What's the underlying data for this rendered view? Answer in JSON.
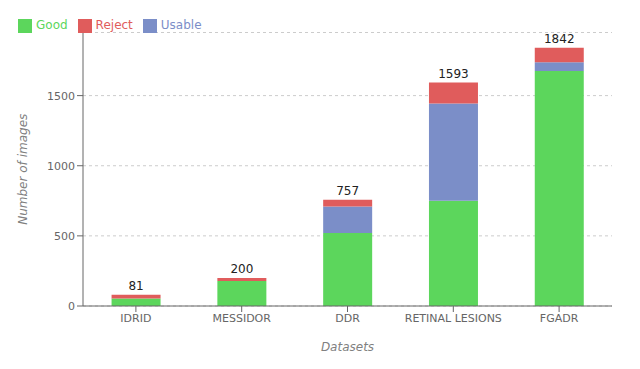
{
  "chart_data": {
    "type": "bar",
    "stacked": true,
    "categories": [
      "IDRID",
      "MESSIDOR",
      "DDR",
      "RETINAL LESIONS",
      "FGADR"
    ],
    "series": [
      {
        "name": "Good",
        "color": "#5cd65c",
        "values": [
          54,
          178,
          520,
          750,
          1676
        ]
      },
      {
        "name": "Usable",
        "color": "#7b8ec8",
        "values": [
          0,
          0,
          190,
          693,
          62
        ]
      },
      {
        "name": "Reject",
        "color": "#e05c5c",
        "values": [
          27,
          22,
          47,
          150,
          104
        ]
      }
    ],
    "totals": [
      81,
      200,
      757,
      1593,
      1842
    ],
    "xlabel": "Datasets",
    "ylabel": "Number of images",
    "ylim": [
      0,
      1950
    ],
    "yticks": [
      0,
      500,
      1000,
      1500
    ],
    "grid": true,
    "legend": "upper left"
  }
}
